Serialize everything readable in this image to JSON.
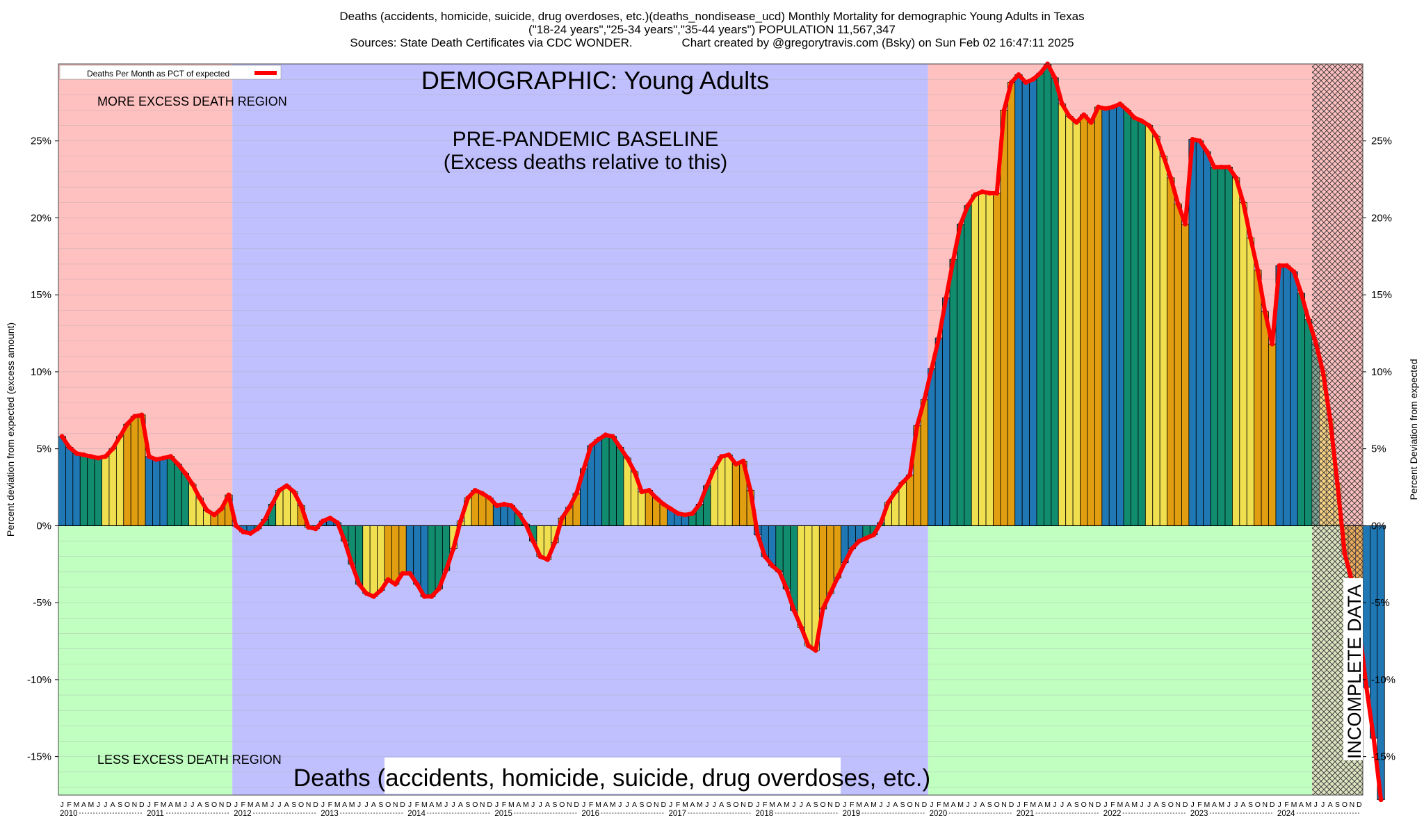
{
  "header": {
    "line1": "Deaths (accidents, homicide, suicide, drug overdoses, etc.)(deaths_nondisease_ucd) Monthly Mortality for demographic Young Adults in Texas",
    "line2": "(\"18-24 years\",\"25-34 years\",\"35-44 years\") POPULATION 11,567,347",
    "line3": "Sources: State Death Certificates via CDC WONDER.               Chart created by @gregorytravis.com (Bsky) on Sun Feb 02 16:47:11 2025"
  },
  "annotations": {
    "demographic": "DEMOGRAPHIC: Young Adults",
    "baseline_line1": "PRE-PANDEMIC BASELINE",
    "baseline_line2": "(Excess deaths relative to this)",
    "more_region": "MORE EXCESS DEATH REGION",
    "less_region": "LESS EXCESS DEATH REGION",
    "bottom_banner": "Deaths (accidents, homicide, suicide, drug overdoses, etc.)",
    "incomplete": "INCOMPLETE DATA"
  },
  "colors": {
    "more_region": "#ffc0c0",
    "less_region": "#c0ffc0",
    "baseline_region": "#c0c0ff",
    "line": "#ff0000",
    "bar_palette": [
      "#1f77b4",
      "#118c6e",
      "#f0e050",
      "#e09e10"
    ]
  },
  "chart_data": {
    "type": "bar",
    "title": "Deaths (accidents, homicide, suicide, drug overdoses, etc.)(deaths_nondisease_ucd) Monthly Mortality for demographic Young Adults in Texas",
    "ylabel": "Percent deviation from expected (excess amount)",
    "ylabel_right": "Percent Deviation from expected",
    "legend": {
      "label": "Deaths Per Month as PCT of expected",
      "placement": "top-left"
    },
    "ylim": [
      -17.5,
      30
    ],
    "yticks": [
      25,
      20,
      15,
      10,
      5,
      0,
      -5,
      -10,
      -15
    ],
    "ytick_labels": [
      "25%",
      "20%",
      "15%",
      "10%",
      "5%",
      "0%",
      "-5%",
      "-10%",
      "-15%"
    ],
    "grid": true,
    "start": "2010-01",
    "month_letters": [
      "J",
      "F",
      "M",
      "A",
      "M",
      "J",
      "J",
      "A",
      "S",
      "O",
      "N",
      "D"
    ],
    "years": [
      "2010",
      "2011",
      "2012",
      "2013",
      "2014",
      "2015",
      "2016",
      "2017",
      "2018",
      "2019",
      "2020",
      "2021",
      "2022",
      "2023",
      "2024"
    ],
    "baseline_period": [
      "2012-01",
      "2019-12"
    ],
    "incomplete_from": "2024-06",
    "values": [
      5.8,
      5.1,
      4.7,
      4.6,
      4.5,
      4.4,
      4.5,
      5.0,
      5.8,
      6.6,
      7.1,
      7.2,
      4.5,
      4.3,
      4.4,
      4.5,
      4.0,
      3.4,
      2.7,
      1.8,
      1.0,
      0.7,
      1.1,
      2.0,
      0.0,
      -0.4,
      -0.5,
      -0.2,
      0.4,
      1.4,
      2.3,
      2.6,
      2.2,
      1.3,
      -0.1,
      -0.2,
      0.3,
      0.5,
      0.2,
      -1.0,
      -2.5,
      -3.8,
      -4.4,
      -4.6,
      -4.2,
      -3.5,
      -3.8,
      -3.1,
      -3.1,
      -3.8,
      -4.6,
      -4.6,
      -4.1,
      -2.9,
      -1.5,
      0.3,
      1.8,
      2.3,
      2.1,
      1.8,
      1.3,
      1.4,
      1.3,
      0.8,
      0.1,
      -1.0,
      -2.0,
      -2.2,
      -1.1,
      0.5,
      1.2,
      2.1,
      3.7,
      5.2,
      5.6,
      5.9,
      5.8,
      5.1,
      4.4,
      3.5,
      2.2,
      2.3,
      1.8,
      1.4,
      1.1,
      0.8,
      0.7,
      0.8,
      1.4,
      2.6,
      3.7,
      4.5,
      4.6,
      4.0,
      4.2,
      2.3,
      -0.6,
      -2.0,
      -2.6,
      -3.0,
      -4.1,
      -5.5,
      -6.6,
      -7.8,
      -8.1,
      -5.4,
      -4.4,
      -3.4,
      -2.4,
      -1.5,
      -1.0,
      -0.8,
      -0.6,
      0.2,
      1.5,
      2.2,
      2.8,
      3.3,
      6.5,
      8.2,
      10.2,
      12.2,
      14.8,
      17.3,
      19.6,
      20.8,
      21.5,
      21.7,
      21.6,
      21.6,
      27.0,
      28.8,
      29.3,
      28.8,
      29.0,
      29.4,
      30.0,
      29.1,
      27.4,
      26.6,
      26.2,
      26.7,
      26.2,
      27.2,
      27.1,
      27.2,
      27.4,
      27.0,
      26.5,
      26.3,
      26.0,
      25.3,
      24.0,
      22.6,
      20.9,
      19.6,
      25.1,
      25.0,
      24.3,
      23.3,
      23.3,
      23.3,
      22.6,
      21.0,
      18.7,
      16.6,
      13.9,
      11.8,
      16.9,
      16.9,
      16.5,
      15.1,
      13.4,
      11.9,
      10.0,
      6.9,
      2.7,
      -1.8,
      -3.6,
      -6.6,
      -10.5,
      -13.8,
      -17.8
    ]
  }
}
